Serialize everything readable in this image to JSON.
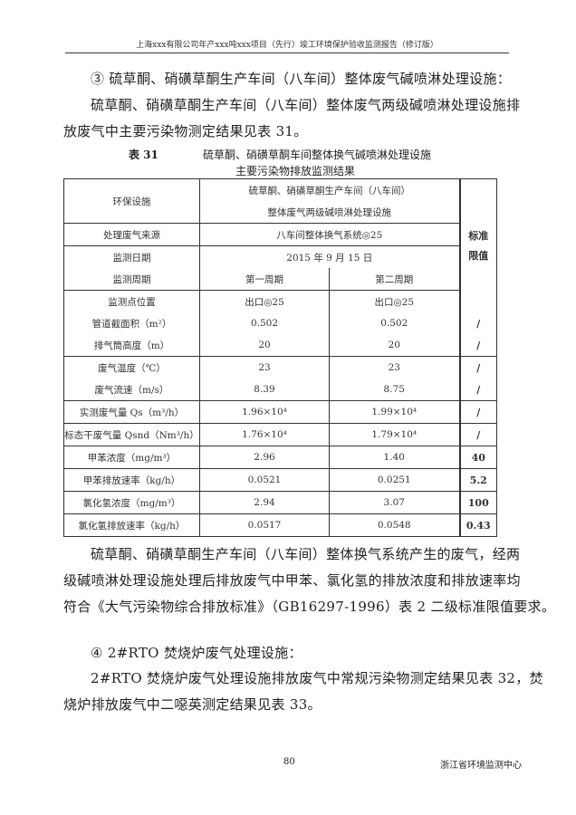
{
  "header": {
    "title": "上海xxx有限公司年产xxx吨xxx项目（先行）竣工环境保护验收监测报告（修订版）"
  },
  "section1": {
    "heading": "③ 硫草酮、硝磺草酮生产车间（八车间）整体废气碱喷淋处理设施：",
    "para_line1": "硫草酮、硝磺草酮生产车间（八车间）整体废气两级碱喷淋处理设施排",
    "para_line2": "放废气中主要污染物测定结果见表 31。"
  },
  "table": {
    "number": "表 31",
    "caption_line1": "硫草酮、硝磺草酮车间整体换气碱喷淋处理设施",
    "caption_line2": "主要污染物排放监测结果",
    "facility_label": "环保设施",
    "facility_value_line1": "硫草酮、硝磺草酮生产车间（八车间）",
    "facility_value_line2": "整体废气两级碱喷淋处理设施",
    "source_label": "处理废气来源",
    "source_value": "八车间整体换气系统◎25",
    "date_label": "监测日期",
    "date_value": "2015 年 9 月 15 日",
    "period_label": "监测周期",
    "period_1": "第一周期",
    "period_2": "第二周期",
    "limit_header": "标准限值",
    "rows": [
      {
        "label": "监测点位置",
        "v1": "出口◎25",
        "v2": "出口◎25",
        "limit": "",
        "group_start": true
      },
      {
        "label": "管道截面积（m²）",
        "v1": "0.502",
        "v2": "0.502",
        "limit": "/"
      },
      {
        "label": "排气筒高度（m）",
        "v1": "20",
        "v2": "20",
        "limit": "/"
      },
      {
        "label": "废气温度（℃）",
        "v1": "23",
        "v2": "23",
        "limit": "/",
        "group_start": true
      },
      {
        "label": "废气流速（m/s）",
        "v1": "8.39",
        "v2": "8.75",
        "limit": "/"
      },
      {
        "label": "实测废气量 Qs（m³/h）",
        "v1": "1.96×10⁴",
        "v2": "1.99×10⁴",
        "limit": "/",
        "group_start": true
      },
      {
        "label": "标态干废气量 Qsnd（Nm³/h）",
        "v1": "1.76×10⁴",
        "v2": "1.79×10⁴",
        "limit": "/",
        "group_start": true
      },
      {
        "label": "甲苯浓度（mg/m³）",
        "v1": "2.96",
        "v2": "1.40",
        "limit": "40",
        "group_start": true
      },
      {
        "label": "甲苯排放速率（kg/h）",
        "v1": "0.0521",
        "v2": "0.0251",
        "limit": "5.2",
        "group_start": true
      },
      {
        "label": "氯化氢浓度（mg/m³）",
        "v1": "2.94",
        "v2": "3.07",
        "limit": "100",
        "group_start": true
      },
      {
        "label": "氯化氢排放速率（kg/h）",
        "v1": "0.0517",
        "v2": "0.0548",
        "limit": "0.43",
        "group_start": true
      }
    ]
  },
  "section2": {
    "line1": "硫草酮、硝磺草酮生产车间（八车间）整体换气系统产生的废气，经两",
    "line2": "级碱喷淋处理设施处理后排放废气中甲苯、氯化氢的排放浓度和排放速率均",
    "line3": "符合《大气污染物综合排放标准》（GB16297-1996）表 2 二级标准限值要求。"
  },
  "section3": {
    "heading": "④ 2#RTO 焚烧炉废气处理设施：",
    "line1": "2#RTO 焚烧炉废气处理设施排放废气中常规污染物测定结果见表 32，焚",
    "line2": "烧炉排放废气中二噁英测定结果见表 33。"
  },
  "footer": {
    "page": "80",
    "org": "浙江省环境监测中心"
  }
}
